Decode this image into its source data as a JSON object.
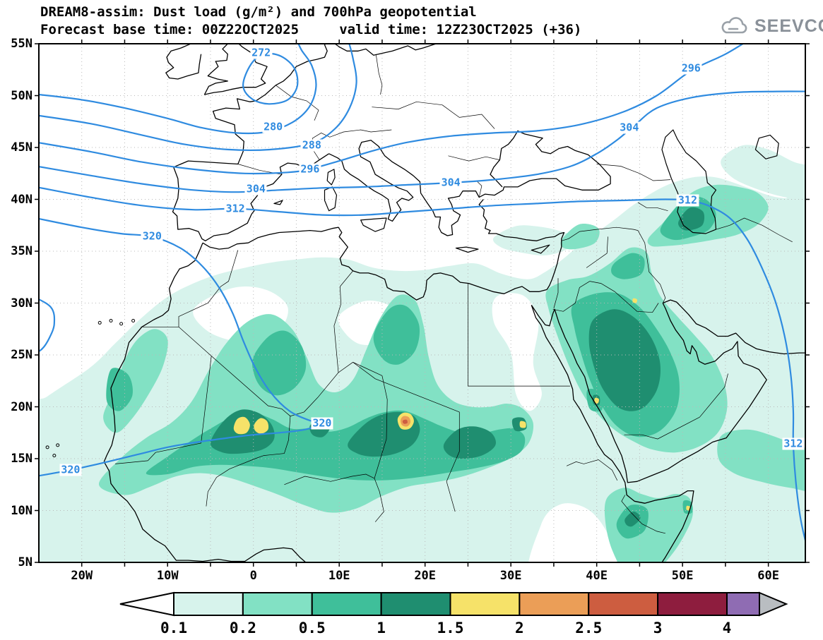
{
  "header": {
    "title_line1": "DREAM8-assim: Dust load (g/m²) and 700hPa geopotential",
    "title_line2": "Forecast base time: 00Z22OCT2025     valid time: 12Z23OCT2025 (+36)",
    "logo_text": "SEEVCCC"
  },
  "axes": {
    "lat_ticks": [
      {
        "label": "55N",
        "lat": 55
      },
      {
        "label": "50N",
        "lat": 50
      },
      {
        "label": "45N",
        "lat": 45
      },
      {
        "label": "40N",
        "lat": 40
      },
      {
        "label": "35N",
        "lat": 35
      },
      {
        "label": "30N",
        "lat": 30
      },
      {
        "label": "25N",
        "lat": 25
      },
      {
        "label": "20N",
        "lat": 20
      },
      {
        "label": "15N",
        "lat": 15
      },
      {
        "label": "10N",
        "lat": 10
      },
      {
        "label": "5N",
        "lat": 5
      }
    ],
    "lon_ticks": [
      {
        "label": "20W",
        "lon": -20
      },
      {
        "label": "10W",
        "lon": -10
      },
      {
        "label": "0",
        "lon": 0
      },
      {
        "label": "10E",
        "lon": 10
      },
      {
        "label": "20E",
        "lon": 20
      },
      {
        "label": "30E",
        "lon": 30
      },
      {
        "label": "40E",
        "lon": 40
      },
      {
        "label": "50E",
        "lon": 50
      },
      {
        "label": "60E",
        "lon": 60
      }
    ]
  },
  "geopotential_labels": [
    {
      "text": "272",
      "lon": 0.9,
      "lat": 54.1
    },
    {
      "text": "280",
      "lon": 2.3,
      "lat": 47.0
    },
    {
      "text": "288",
      "lon": 6.8,
      "lat": 45.2
    },
    {
      "text": "296",
      "lon": 6.6,
      "lat": 42.9
    },
    {
      "text": "304",
      "lon": 0.3,
      "lat": 41.0
    },
    {
      "text": "312",
      "lon": -2.1,
      "lat": 39.1
    },
    {
      "text": "320",
      "lon": -11.8,
      "lat": 36.4
    },
    {
      "text": "304",
      "lon": 23.0,
      "lat": 41.6
    },
    {
      "text": "296",
      "lon": 51.0,
      "lat": 52.6
    },
    {
      "text": "304",
      "lon": 43.8,
      "lat": 46.9
    },
    {
      "text": "312",
      "lon": 50.6,
      "lat": 39.9
    },
    {
      "text": "312",
      "lon": 62.9,
      "lat": 16.4
    },
    {
      "text": "320",
      "lon": 8.0,
      "lat": 18.4
    },
    {
      "text": "320",
      "lon": -21.3,
      "lat": 13.9
    }
  ],
  "legend": {
    "values": [
      "0.1",
      "0.2",
      "0.5",
      "1",
      "1.5",
      "2",
      "2.5",
      "3",
      "4"
    ],
    "colors": [
      "#d7f3ec",
      "#82e1c4",
      "#3fbf9a",
      "#1f8e70",
      "#f6e269",
      "#eb9e57",
      "#cd5d40",
      "#8e1d3e"
    ],
    "overflow_color": "#8f6cb3",
    "underflow_color": "#ffffff",
    "arrow_color": "#b9bdc1"
  },
  "chart_data": {
    "type": "heatmap",
    "title": "DREAM8-assim: Dust load (g/m²) and 700hPa geopotential",
    "forecast_base_time": "00Z22OCT2025",
    "valid_time": "12Z23OCT2025",
    "lead": "+36",
    "dust_load_units": "g/m²",
    "dust_load_levels": [
      0.1,
      0.2,
      0.5,
      1,
      1.5,
      2,
      2.5,
      3,
      4
    ],
    "geopotential_level_hpa": 700,
    "geopotential_contour_levels": [
      272,
      280,
      288,
      296,
      304,
      312,
      320
    ],
    "geopotential_contour_interval": 8,
    "lon_range": [
      -25,
      64.3
    ],
    "lat_range": [
      5,
      55
    ],
    "legend_position": "bottom",
    "grid": "dotted graticule every 5 degrees"
  }
}
